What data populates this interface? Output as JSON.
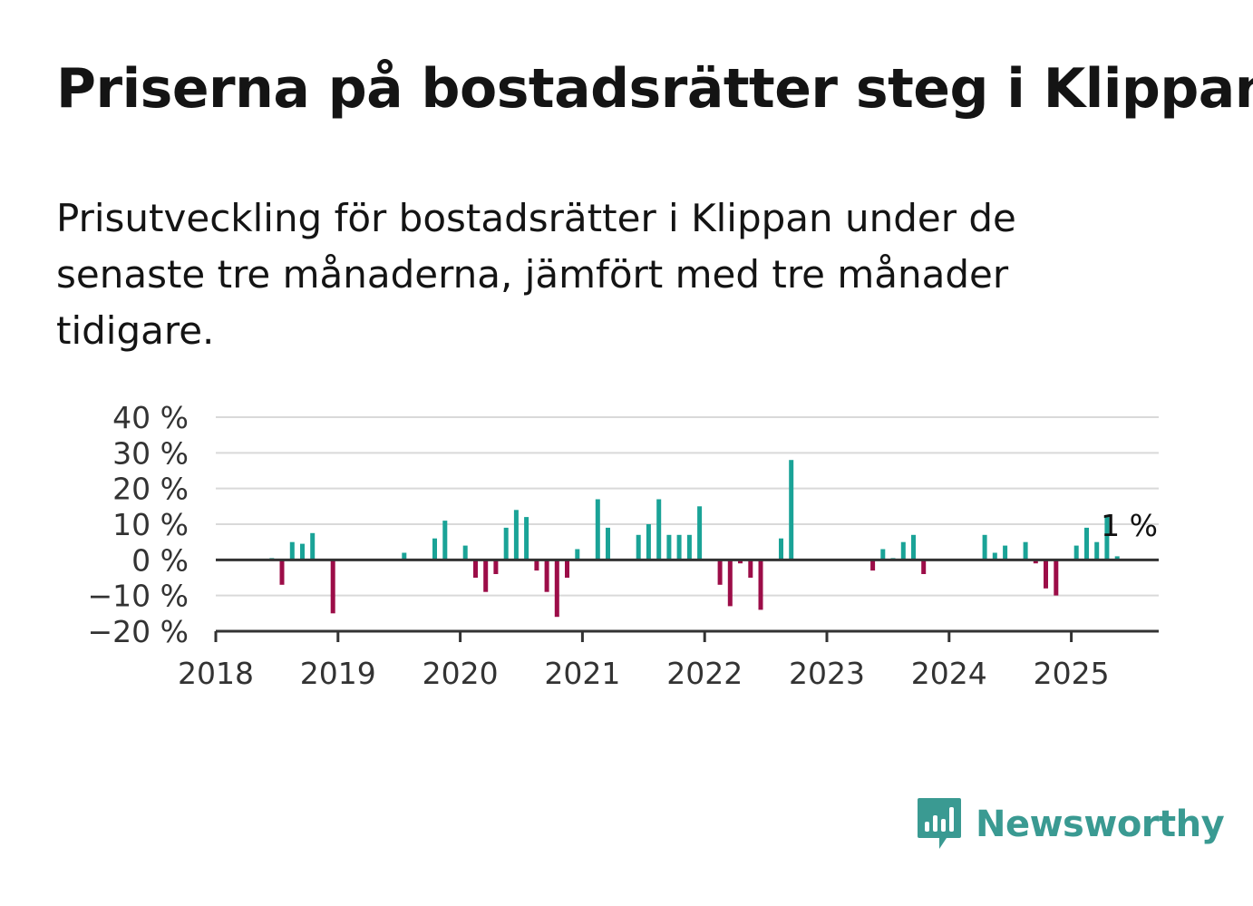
{
  "header": {
    "title": "Priserna på bostadsrätter steg i Klippan",
    "subtitle": "Prisutveckling för bostadsrätter i Klippan under de senaste tre månaderna, jämfört med tre månader tidigare."
  },
  "brand": {
    "name": "Newsworthy",
    "icon": "newsworthy-logo-icon",
    "color": "#3a9a92"
  },
  "colors": {
    "positive": "#1aa397",
    "negative": "#9c0d48",
    "grid": "#d9d9d9",
    "axis": "#333333"
  },
  "chart_data": {
    "type": "bar",
    "title": "Priserna på bostadsrätter steg i Klippan",
    "xlabel": "",
    "ylabel": "",
    "ylim": [
      -20,
      40
    ],
    "yticks": [
      40,
      30,
      20,
      10,
      0,
      -10,
      -20
    ],
    "ytick_labels": [
      "40 %",
      "30 %",
      "20 %",
      "10 %",
      "0 %",
      "−10 %",
      "−20 %"
    ],
    "xticks": [
      "2018",
      "2019",
      "2020",
      "2021",
      "2022",
      "2023",
      "2024",
      "2025"
    ],
    "grid": true,
    "annotation": {
      "text": "1 %",
      "x": "2025-05",
      "value": 1
    },
    "series": [
      {
        "values": [
          {
            "x": "2018-06",
            "y": 0.5
          },
          {
            "x": "2018-07",
            "y": -7
          },
          {
            "x": "2018-08",
            "y": 5
          },
          {
            "x": "2018-09",
            "y": 4.5
          },
          {
            "x": "2018-10",
            "y": 7.5
          },
          {
            "x": "2018-12",
            "y": -15
          },
          {
            "x": "2019-07",
            "y": 2
          },
          {
            "x": "2019-10",
            "y": 6
          },
          {
            "x": "2019-11",
            "y": 11
          },
          {
            "x": "2020-01",
            "y": 4
          },
          {
            "x": "2020-02",
            "y": -5
          },
          {
            "x": "2020-03",
            "y": -9
          },
          {
            "x": "2020-04",
            "y": -4
          },
          {
            "x": "2020-05",
            "y": 9
          },
          {
            "x": "2020-06",
            "y": 14
          },
          {
            "x": "2020-07",
            "y": 12
          },
          {
            "x": "2020-08",
            "y": -3
          },
          {
            "x": "2020-09",
            "y": -9
          },
          {
            "x": "2020-10",
            "y": -16
          },
          {
            "x": "2020-11",
            "y": -5
          },
          {
            "x": "2020-12",
            "y": 3
          },
          {
            "x": "2021-02",
            "y": 17
          },
          {
            "x": "2021-03",
            "y": 9
          },
          {
            "x": "2021-06",
            "y": 7
          },
          {
            "x": "2021-07",
            "y": 10
          },
          {
            "x": "2021-08",
            "y": 17
          },
          {
            "x": "2021-09",
            "y": 7
          },
          {
            "x": "2021-10",
            "y": 7
          },
          {
            "x": "2021-11",
            "y": 7
          },
          {
            "x": "2021-12",
            "y": 15
          },
          {
            "x": "2022-02",
            "y": -7
          },
          {
            "x": "2022-03",
            "y": -13
          },
          {
            "x": "2022-04",
            "y": -1
          },
          {
            "x": "2022-05",
            "y": -5
          },
          {
            "x": "2022-06",
            "y": -14
          },
          {
            "x": "2022-08",
            "y": 6
          },
          {
            "x": "2022-09",
            "y": 28
          },
          {
            "x": "2023-05",
            "y": -3
          },
          {
            "x": "2023-06",
            "y": 3
          },
          {
            "x": "2023-07",
            "y": 0.5
          },
          {
            "x": "2023-08",
            "y": 5
          },
          {
            "x": "2023-09",
            "y": 7
          },
          {
            "x": "2023-10",
            "y": -4
          },
          {
            "x": "2024-04",
            "y": 7
          },
          {
            "x": "2024-05",
            "y": 2
          },
          {
            "x": "2024-06",
            "y": 4
          },
          {
            "x": "2024-08",
            "y": 5
          },
          {
            "x": "2024-09",
            "y": -1
          },
          {
            "x": "2024-10",
            "y": -8
          },
          {
            "x": "2024-11",
            "y": -10
          },
          {
            "x": "2025-01",
            "y": 4
          },
          {
            "x": "2025-02",
            "y": 9
          },
          {
            "x": "2025-03",
            "y": 5
          },
          {
            "x": "2025-04",
            "y": 12
          },
          {
            "x": "2025-05",
            "y": 1
          }
        ]
      }
    ]
  }
}
